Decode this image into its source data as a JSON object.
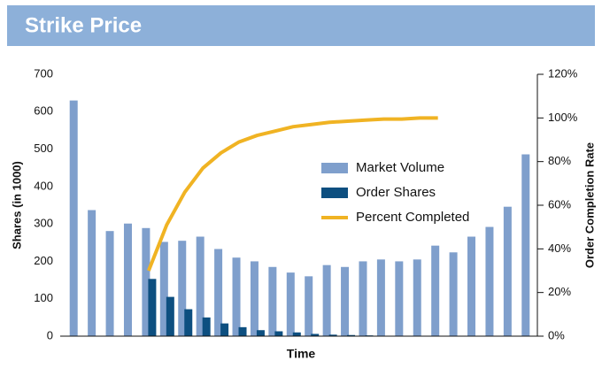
{
  "chart_data": {
    "type": "bar",
    "title": "Strike Price",
    "y_label": "Shares (in 1000)",
    "y2_label": "Order Completion Rate",
    "x_label": "Time",
    "ylim": [
      0,
      700
    ],
    "yticks": [
      0,
      100,
      200,
      300,
      400,
      500,
      600,
      700
    ],
    "y2lim": [
      0,
      120
    ],
    "y2ticks": [
      {
        "value": 0,
        "label": "0%"
      },
      {
        "value": 20,
        "label": "20%"
      },
      {
        "value": 40,
        "label": "40%"
      },
      {
        "value": 60,
        "label": "60%"
      },
      {
        "value": 80,
        "label": "80%"
      },
      {
        "value": 100,
        "label": "100%"
      },
      {
        "value": 120,
        "label": "120%"
      }
    ],
    "series": [
      {
        "name": "Market Volume",
        "type": "bar",
        "color": "#7f9fcc",
        "values": [
          630,
          337,
          281,
          301,
          289,
          252,
          255,
          266,
          233,
          210,
          200,
          185,
          170,
          160,
          190,
          185,
          200,
          205,
          200,
          205,
          242,
          224,
          266,
          292,
          346,
          486
        ]
      },
      {
        "name": "Order Shares",
        "type": "bar",
        "color": "#0d4f80",
        "values": [
          null,
          null,
          null,
          null,
          153,
          105,
          72,
          50,
          34,
          24,
          16,
          13,
          10,
          6,
          4,
          3,
          2,
          null,
          null,
          null,
          null,
          null,
          null,
          null,
          null,
          null
        ]
      },
      {
        "name": "Percent Completed",
        "type": "line",
        "axis": "y2",
        "color": "#f0b323",
        "values": [
          null,
          null,
          null,
          null,
          30,
          51,
          66,
          77,
          84,
          89,
          92,
          94,
          96,
          97,
          98,
          98.5,
          99,
          99.5,
          99.5,
          100,
          100,
          null,
          null,
          null,
          null,
          null
        ]
      }
    ]
  }
}
